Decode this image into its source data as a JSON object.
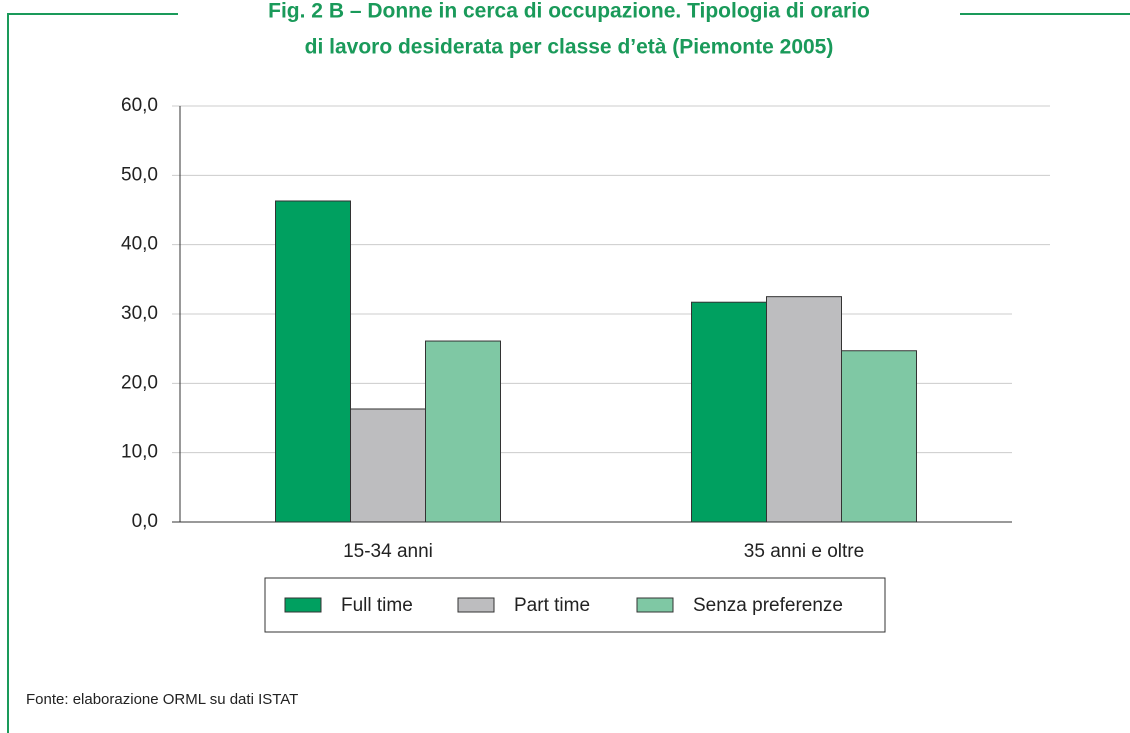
{
  "chart_data": {
    "type": "bar",
    "title": [
      "Fig. 2 B – Donne in cerca di occupazione. Tipologia di orario",
      "di lavoro desiderata per classe d’età (Piemonte 2005)"
    ],
    "categories": [
      "15-34 anni",
      "35 anni e oltre"
    ],
    "series": [
      {
        "name": "Full time",
        "color": "#00a060",
        "values": [
          46.3,
          31.7
        ]
      },
      {
        "name": "Part time",
        "color": "#bdbdbf",
        "values": [
          16.3,
          32.5
        ]
      },
      {
        "name": "Senza preferenze",
        "color": "#7fc8a4",
        "values": [
          26.1,
          24.7
        ]
      }
    ],
    "ylim": [
      0,
      60
    ],
    "yticks": [
      {
        "value": 0,
        "label": "0,0"
      },
      {
        "value": 10,
        "label": "10,0"
      },
      {
        "value": 20,
        "label": "20,0"
      },
      {
        "value": 30,
        "label": "30,0"
      },
      {
        "value": 40,
        "label": "40,0"
      },
      {
        "value": 50,
        "label": "50,0"
      },
      {
        "value": 60,
        "label": "60,0"
      }
    ],
    "grid": true,
    "legend": "bottom",
    "source": "Fonte: elaborazione ORML su dati ISTAT"
  }
}
